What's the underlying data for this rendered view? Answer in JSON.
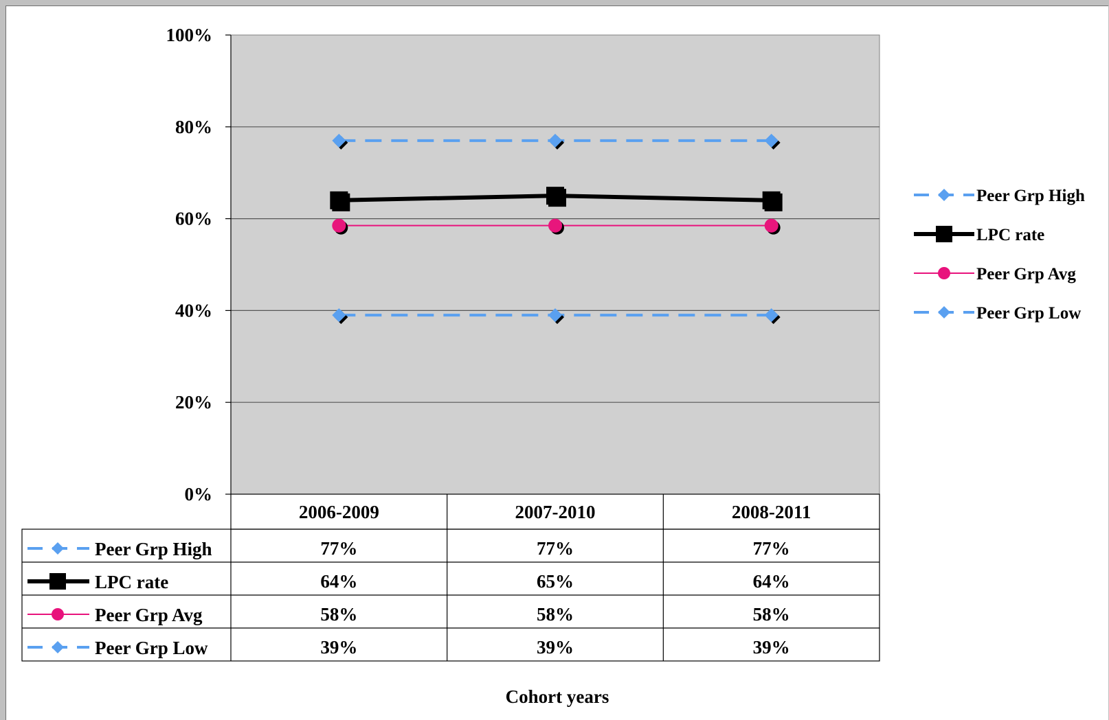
{
  "chart_data": {
    "type": "line",
    "categories": [
      "2006-2009",
      "2007-2010",
      "2008-2011"
    ],
    "series": [
      {
        "name": "Peer Grp High",
        "values": [
          77,
          77,
          77
        ],
        "labels": [
          "77%",
          "77%",
          "77%"
        ],
        "color": "#5aa0f0",
        "dash": true,
        "marker": "diamond"
      },
      {
        "name": "LPC rate",
        "values": [
          64,
          65,
          64
        ],
        "labels": [
          "64%",
          "65%",
          "64%"
        ],
        "color": "#000000",
        "dash": false,
        "marker": "square"
      },
      {
        "name": "Peer Grp Avg",
        "values": [
          58.5,
          58.5,
          58.5
        ],
        "labels": [
          "58%",
          "58%",
          "58%"
        ],
        "color": "#e8127c",
        "dash": false,
        "marker": "circle"
      },
      {
        "name": "Peer Grp Low",
        "values": [
          39,
          39,
          39
        ],
        "labels": [
          "39%",
          "39%",
          "39%"
        ],
        "color": "#5aa0f0",
        "dash": true,
        "marker": "diamond"
      }
    ],
    "y_ticks": [
      0,
      20,
      40,
      60,
      80,
      100
    ],
    "y_tick_labels": [
      "0%",
      "20%",
      "40%",
      "60%",
      "80%",
      "100%"
    ],
    "ylim": [
      0,
      100
    ],
    "xlabel": "Cohort years",
    "grid": true,
    "legend_position": "right",
    "data_table": true,
    "plot_background": "#d0d0d0"
  }
}
